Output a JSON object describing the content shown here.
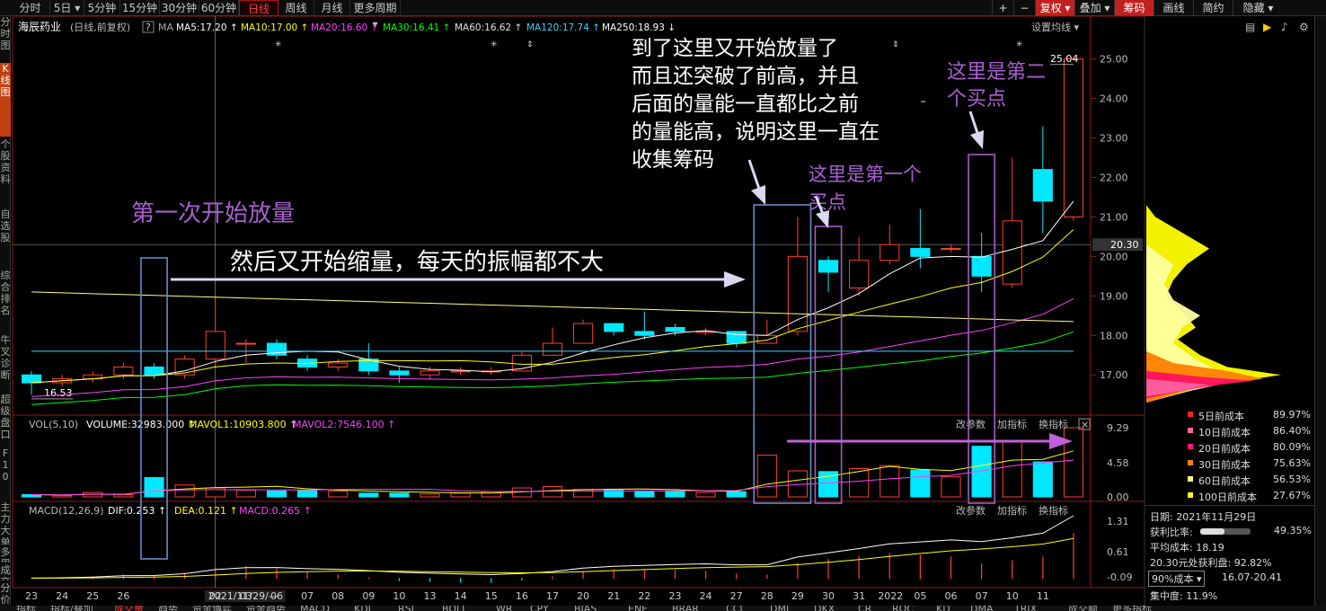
{
  "topbar": {
    "period_tabs": [
      "分时",
      "5日",
      "5分钟",
      "15分钟",
      "30分钟",
      "60分钟",
      "日线",
      "周线",
      "月线",
      "更多周期"
    ],
    "active_tab": "日线",
    "right_buttons": [
      "+",
      "−",
      "复权",
      "叠加",
      "筹码",
      "画线",
      "简约",
      "隐藏"
    ]
  },
  "left_sidebar": [
    "分时图",
    "K线图",
    "个股资料",
    "自选股",
    "综合排名",
    "牛叉诊断",
    "超级盘口",
    "F10",
    "主力大单",
    "多周期图",
    "成交明细",
    "分价表"
  ],
  "stock": {
    "name": "海辰药业",
    "period_label": "(日线,前复权)",
    "ma_prefix": "MA"
  },
  "ma_legend": [
    {
      "label": "MA5:17.20",
      "color": "#ffffff"
    },
    {
      "label": "MA10:17.00",
      "color": "#ffff00"
    },
    {
      "label": "MA20:16.60",
      "color": "#ff40ff"
    },
    {
      "label": "MA30:16.41",
      "color": "#00ff00"
    },
    {
      "label": "MA60:16.62",
      "color": "#e0e0e0"
    },
    {
      "label": "MA120:17.74",
      "color": "#40d0ff"
    },
    {
      "label": "MA250:18.93",
      "color": "#ffffff"
    }
  ],
  "settings_label": "设置均线",
  "vol_legend": {
    "name": "VOL(5,10)",
    "volume": "VOLUME:32983.000",
    "mavol1": "MAVOL1:10903.800",
    "mavol2": "MAVOL2:7546.100"
  },
  "macd_legend": {
    "name": "MACD(12,26,9)",
    "dif": "DIF:0.253",
    "dea": "DEA:0.121",
    "macd": "MACD:0.265"
  },
  "panel_buttons": [
    "改参数",
    "加指标",
    "换指标"
  ],
  "price_labels": {
    "high": "25.04",
    "low": "16.53",
    "current": "20.30"
  },
  "annotations": [
    "第一次开始放量",
    "然后又开始缩量，每天的振幅都不大",
    "到了这里又开始放量了",
    "而且还突破了前高，并且",
    "后面的量能一直都比之前",
    "的量能高，说明这里一直在",
    "收集筹码",
    "这里是第一个",
    "买点",
    "这里是第二",
    "个买点",
    "-"
  ],
  "chart_data": {
    "type": "candlestick",
    "x": [
      "23",
      "24",
      "25",
      "26",
      "27",
      "30",
      "2021/11/29",
      "02",
      "03",
      "06",
      "07",
      "08",
      "09",
      "10",
      "13",
      "14",
      "15",
      "16",
      "17",
      "20",
      "21",
      "22",
      "23",
      "24",
      "27",
      "28",
      "29",
      "30",
      "31",
      "2022",
      "05",
      "06",
      "07",
      "10",
      "11"
    ],
    "x_tick_labels": [
      "23",
      "24",
      "25",
      "26",
      "2021/11/29/—",
      "02",
      "03",
      "06",
      "07",
      "08",
      "09",
      "10",
      "13",
      "14",
      "15",
      "16",
      "17",
      "20",
      "21",
      "22",
      "23",
      "24",
      "27",
      "28",
      "29",
      "30",
      "31",
      "2022",
      "05",
      "06",
      "07",
      "10",
      "11"
    ],
    "ohlc": [
      [
        17.0,
        16.8,
        16.5,
        17.1
      ],
      [
        16.8,
        16.9,
        16.7,
        17.0
      ],
      [
        16.9,
        17.0,
        16.8,
        17.1
      ],
      [
        17.0,
        17.2,
        16.9,
        17.3
      ],
      [
        17.2,
        17.0,
        16.9,
        17.3
      ],
      [
        17.0,
        17.4,
        16.9,
        17.5
      ],
      [
        17.4,
        18.1,
        17.2,
        19.0
      ],
      [
        17.8,
        17.8,
        17.3,
        17.9
      ],
      [
        17.8,
        17.5,
        17.4,
        17.9
      ],
      [
        17.4,
        17.2,
        17.1,
        17.5
      ],
      [
        17.2,
        17.3,
        17.1,
        17.4
      ],
      [
        17.4,
        17.1,
        17.0,
        17.8
      ],
      [
        17.1,
        17.0,
        16.8,
        17.2
      ],
      [
        17.0,
        17.1,
        16.9,
        17.2
      ],
      [
        17.1,
        17.1,
        17.0,
        17.2
      ],
      [
        17.1,
        17.1,
        17.0,
        17.2
      ],
      [
        17.1,
        17.5,
        17.1,
        17.6
      ],
      [
        17.5,
        17.8,
        17.5,
        18.2
      ],
      [
        17.8,
        18.3,
        17.8,
        18.4
      ],
      [
        18.3,
        18.1,
        18.0,
        18.3
      ],
      [
        18.1,
        18.0,
        17.9,
        18.6
      ],
      [
        18.2,
        18.1,
        18.0,
        18.3
      ],
      [
        18.1,
        18.1,
        18.0,
        18.2
      ],
      [
        18.1,
        17.8,
        17.7,
        18.1
      ],
      [
        17.8,
        18.0,
        17.8,
        18.4
      ],
      [
        18.1,
        20.0,
        18.0,
        21.0
      ],
      [
        19.9,
        19.6,
        19.1,
        20.0
      ],
      [
        19.2,
        19.9,
        19.0,
        20.5
      ],
      [
        19.9,
        20.3,
        19.8,
        20.8
      ],
      [
        20.2,
        20.0,
        19.7,
        21.2
      ],
      [
        20.2,
        20.2,
        20.1,
        20.3
      ],
      [
        20.0,
        19.5,
        19.1,
        20.6
      ],
      [
        19.3,
        20.9,
        19.2,
        22.5
      ],
      [
        22.2,
        21.4,
        20.6,
        23.3
      ],
      [
        21.0,
        25.0,
        20.9,
        25.04
      ]
    ],
    "volume": [
      0.3,
      0.2,
      0.6,
      0.3,
      2.6,
      1.6,
      1.2,
      0.9,
      0.8,
      0.9,
      0.8,
      0.5,
      0.5,
      0.4,
      0.5,
      0.7,
      1.2,
      1.4,
      1.0,
      0.9,
      0.8,
      0.8,
      0.6,
      0.7,
      5.6,
      3.5,
      3.4,
      3.8,
      4.2,
      3.6,
      2.7,
      6.8,
      7.4,
      4.7,
      9.29
    ],
    "price_axis": [
      25.0,
      24.0,
      23.0,
      22.0,
      21.0,
      20.0,
      19.0,
      18.0,
      17.0
    ],
    "vol_axis": [
      9.29,
      4.58,
      0.0
    ],
    "macd_axis": [
      1.31,
      0.61,
      -0.09
    ],
    "ylim": [
      16.3,
      25.4
    ],
    "cost_levels": [
      {
        "label": "5日前成本",
        "value": "89.97%",
        "color": "#ff2020"
      },
      {
        "label": "10日前成本",
        "value": "86.40%",
        "color": "#ff60a0"
      },
      {
        "label": "20日前成本",
        "value": "80.09%",
        "color": "#ff1080"
      },
      {
        "label": "30日前成本",
        "value": "75.63%",
        "color": "#ff8000"
      },
      {
        "label": "60日前成本",
        "value": "56.53%",
        "color": "#ffff80"
      },
      {
        "label": "100日前成本",
        "value": "27.67%",
        "color": "#ffff00"
      }
    ]
  },
  "stats": {
    "date": "日期: 2021年11月29日",
    "profit_ratio_label": "获利比率:",
    "profit_ratio_value": "49.35%",
    "avg_cost": "平均成本: 18.19",
    "profit_at": "20.30元处获利盘: 92.82%",
    "cost90_label": "90%成本",
    "cost90_range": "16.07-20.41",
    "concentration": "集中度: 11.9%"
  },
  "bottom_tabs": [
    "指标",
    "指标/叠加",
    "成交量",
    "趋势",
    "资金博弈",
    "资金趋势",
    "MACD",
    "KDJ",
    "RSI",
    "BOLL",
    "WR",
    "CPY",
    "BIAS",
    "ENE",
    "BRAR",
    "CCI",
    "DMI",
    "DKX",
    "CR",
    "ROC",
    "KD",
    "DMA",
    "TRIX",
    "成交额",
    "更多指标"
  ]
}
